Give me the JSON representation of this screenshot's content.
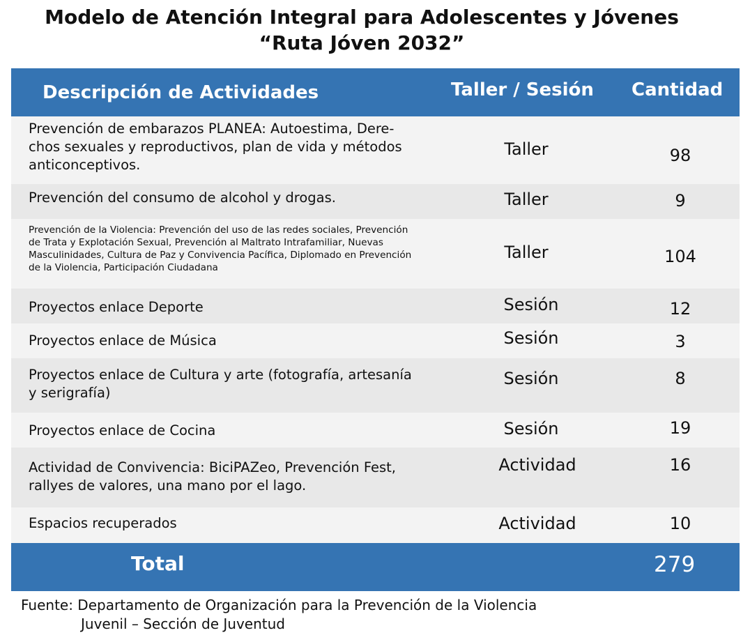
{
  "title": {
    "line1": "Modelo de Atención Integral para Adolescentes y Jóvenes",
    "line2": "“Ruta Jóven 2032”"
  },
  "table": {
    "headers": {
      "description": "Descripción de Actividades",
      "type": "Taller / Sesión",
      "quantity": "Cantidad"
    },
    "rows": [
      {
        "description_lines": [
          "Prevención de embarazos PLANEA: Autoestima, Dere-",
          "chos sexuales y reproductivos, plan de vida y métodos",
          "anticonceptivos."
        ],
        "type": "Taller",
        "quantity": "98"
      },
      {
        "description_lines": [
          "Prevención del consumo de alcohol y drogas."
        ],
        "type": "Taller",
        "quantity": "9"
      },
      {
        "description_lines": [
          "Prevención de la Violencia: Prevención del uso de las redes sociales, Prevención",
          "de Trata y Explotación Sexual, Prevención al Maltrato Intrafamiliar, Nuevas",
          "Masculinidades, Cultura de Paz y Convivencia Pacífica, Diplomado en Prevención",
          "de la Violencia, Participación Ciudadana"
        ],
        "type": "Taller",
        "quantity": "104"
      },
      {
        "description_lines": [
          "Proyectos enlace Deporte"
        ],
        "type": "Sesión",
        "quantity": "12"
      },
      {
        "description_lines": [
          "Proyectos enlace de Música"
        ],
        "type": "Sesión",
        "quantity": "3"
      },
      {
        "description_lines": [
          "Proyectos enlace de Cultura  y arte (fotografía, artesanía",
          "y serigrafía)"
        ],
        "type": "Sesión",
        "quantity": "8"
      },
      {
        "description_lines": [
          "Proyectos enlace de Cocina"
        ],
        "type": "Sesión",
        "quantity": "19"
      },
      {
        "description_lines": [
          "Actividad de Convivencia: BiciPAZeo, Prevención Fest,",
          "rallyes de valores, una mano por el lago."
        ],
        "type": "Actividad",
        "quantity": "16"
      },
      {
        "description_lines": [
          "Espacios recuperados"
        ],
        "type": "Actividad",
        "quantity": "10"
      }
    ],
    "total": {
      "label": "Total",
      "value": "279"
    }
  },
  "source": {
    "line1": "Fuente: Departamento de Organización para la Prevención de la Violencia",
    "line2": "Juvenil – Sección de Juventud"
  },
  "colors": {
    "header_bg": "#3574b3",
    "header_text": "#ffffff",
    "row_light": "#f3f3f3",
    "row_dark": "#e8e8e8"
  }
}
